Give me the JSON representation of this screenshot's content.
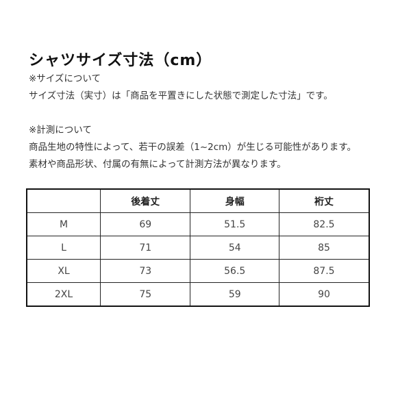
{
  "title": "シャツサイズ寸法（cm）",
  "notes": [
    "※サイズについて",
    "サイズ寸法（実寸）は「商品を平置きにした状態で測定した寸法」です。",
    "※計測について",
    "商品生地の特性によって、若干の誤差（1~2cm）が生じる可能性があります。",
    "素材や商品形状、付属の有無によって計測方法が異なります。"
  ],
  "table": {
    "headers": [
      "",
      "後着丈",
      "身幅",
      "裄丈"
    ],
    "rows": [
      [
        "M",
        "69",
        "51.5",
        "82.5"
      ],
      [
        "L",
        "71",
        "54",
        "85"
      ],
      [
        "XL",
        "73",
        "56.5",
        "87.5"
      ],
      [
        "2XL",
        "75",
        "59",
        "90"
      ]
    ]
  }
}
